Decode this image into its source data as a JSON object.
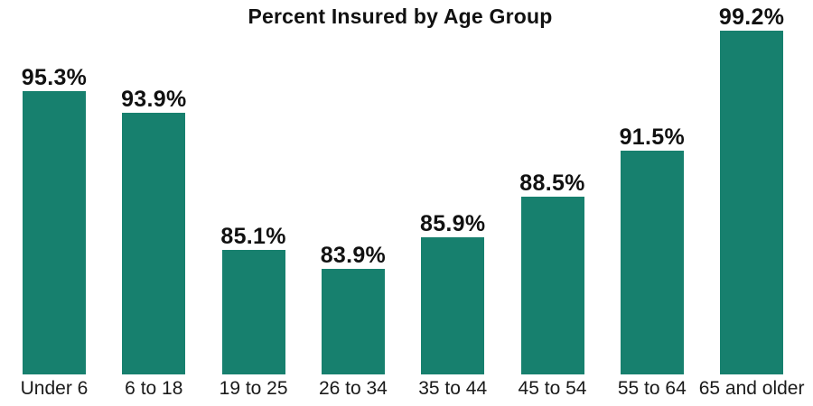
{
  "chart_data": {
    "type": "bar",
    "title": "Percent Insured by Age Group",
    "categories": [
      "Under 6",
      "6 to 18",
      "19 to 25",
      "26 to 34",
      "35 to 44",
      "45 to 54",
      "55 to 64",
      "65 and older"
    ],
    "values": [
      95.3,
      93.9,
      85.1,
      83.9,
      85.9,
      88.5,
      91.5,
      99.2
    ],
    "value_labels": [
      "95.3%",
      "93.9%",
      "85.1%",
      "83.9%",
      "85.9%",
      "88.5%",
      "91.5%",
      "99.2%"
    ],
    "xlabel": "",
    "ylabel": "",
    "ylim": [
      77.1,
      100
    ],
    "grid": false,
    "legend": false,
    "value_label_position": "above-bar",
    "colors": {
      "bar": "#17806E",
      "text": "#111111",
      "background": "#FFFFFF"
    }
  }
}
